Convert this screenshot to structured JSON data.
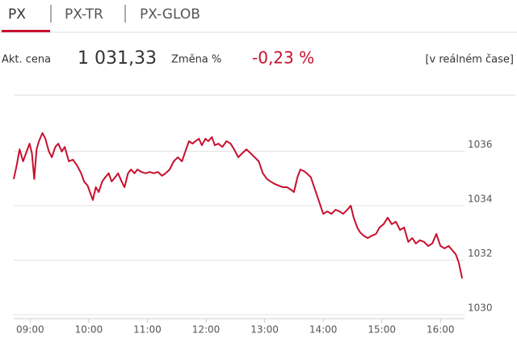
{
  "tabs": [
    "PX",
    "PX-TR",
    "PX-GLOB"
  ],
  "quote": {
    "price_label": "Akt. cena",
    "price": "1 031,33",
    "change_label": "Změna %",
    "change": "-0,23 %",
    "note": "[v reálném čase]"
  },
  "chart_data": {
    "type": "line",
    "color": "#c8102e",
    "grid": true,
    "xlim": [
      8.72,
      16.41
    ],
    "ylim": [
      1029.85,
      1038.06
    ],
    "xticks": [
      {
        "value": 9,
        "label": "09:00"
      },
      {
        "value": 10,
        "label": "10:00"
      },
      {
        "value": 11,
        "label": "11:00"
      },
      {
        "value": 12,
        "label": "12:00"
      },
      {
        "value": 13,
        "label": "13:00"
      },
      {
        "value": 14,
        "label": "14:00"
      },
      {
        "value": 15,
        "label": "15:00"
      },
      {
        "value": 16,
        "label": "16:00"
      }
    ],
    "yticks": [
      1030,
      1032,
      1034,
      1036
    ],
    "x": [
      8.72,
      8.77,
      8.82,
      8.88,
      8.93,
      8.99,
      9.03,
      9.07,
      9.11,
      9.15,
      9.21,
      9.26,
      9.32,
      9.37,
      9.43,
      9.48,
      9.54,
      9.59,
      9.66,
      9.73,
      9.8,
      9.87,
      9.92,
      9.98,
      10.03,
      10.07,
      10.12,
      10.17,
      10.23,
      10.28,
      10.34,
      10.39,
      10.45,
      10.5,
      10.56,
      10.61,
      10.67,
      10.72,
      10.78,
      10.83,
      10.9,
      10.97,
      11.04,
      11.11,
      11.18,
      11.25,
      11.31,
      11.38,
      11.45,
      11.52,
      11.59,
      11.66,
      11.71,
      11.77,
      11.82,
      11.88,
      11.93,
      11.99,
      12.04,
      12.1,
      12.15,
      12.21,
      12.28,
      12.35,
      12.42,
      12.48,
      12.55,
      12.62,
      12.69,
      12.76,
      12.83,
      12.9,
      12.97,
      13.04,
      13.1,
      13.17,
      13.24,
      13.31,
      13.38,
      13.45,
      13.5,
      13.56,
      13.61,
      13.67,
      13.72,
      13.79,
      13.86,
      13.93,
      14.0,
      14.07,
      14.14,
      14.21,
      14.28,
      14.34,
      14.41,
      14.47,
      14.52,
      14.58,
      14.63,
      14.69,
      14.76,
      14.83,
      14.9,
      14.96,
      15.03,
      15.1,
      15.17,
      15.24,
      15.31,
      15.38,
      15.45,
      15.52,
      15.58,
      15.65,
      15.72,
      15.79,
      15.86,
      15.93,
      16.0,
      16.07,
      16.14,
      16.2,
      16.26,
      16.31,
      16.37
    ],
    "values": [
      1034.98,
      1035.48,
      1036.07,
      1035.63,
      1035.93,
      1036.28,
      1035.93,
      1034.98,
      1036.07,
      1036.37,
      1036.67,
      1036.46,
      1035.99,
      1035.78,
      1036.16,
      1036.28,
      1035.99,
      1036.16,
      1035.63,
      1035.69,
      1035.48,
      1035.19,
      1034.89,
      1034.74,
      1034.44,
      1034.21,
      1034.68,
      1034.5,
      1034.89,
      1035.04,
      1035.19,
      1034.89,
      1035.04,
      1035.19,
      1034.89,
      1034.68,
      1035.19,
      1035.33,
      1035.19,
      1035.33,
      1035.24,
      1035.19,
      1035.24,
      1035.19,
      1035.24,
      1035.1,
      1035.19,
      1035.33,
      1035.63,
      1035.78,
      1035.63,
      1036.07,
      1036.37,
      1036.28,
      1036.37,
      1036.46,
      1036.22,
      1036.46,
      1036.37,
      1036.52,
      1036.22,
      1036.28,
      1036.16,
      1036.37,
      1036.28,
      1036.07,
      1035.78,
      1035.93,
      1036.07,
      1035.93,
      1035.78,
      1035.63,
      1035.19,
      1034.98,
      1034.89,
      1034.8,
      1034.74,
      1034.68,
      1034.68,
      1034.59,
      1034.5,
      1035.04,
      1035.33,
      1035.27,
      1035.19,
      1035.04,
      1034.59,
      1034.15,
      1033.7,
      1033.79,
      1033.7,
      1033.85,
      1033.79,
      1033.7,
      1033.85,
      1034.0,
      1033.56,
      1033.2,
      1033.02,
      1032.9,
      1032.81,
      1032.9,
      1032.96,
      1033.2,
      1033.32,
      1033.56,
      1033.32,
      1033.41,
      1033.11,
      1033.2,
      1032.67,
      1032.81,
      1032.61,
      1032.73,
      1032.67,
      1032.52,
      1032.61,
      1032.96,
      1032.52,
      1032.43,
      1032.52,
      1032.37,
      1032.22,
      1031.93,
      1031.33
    ]
  }
}
